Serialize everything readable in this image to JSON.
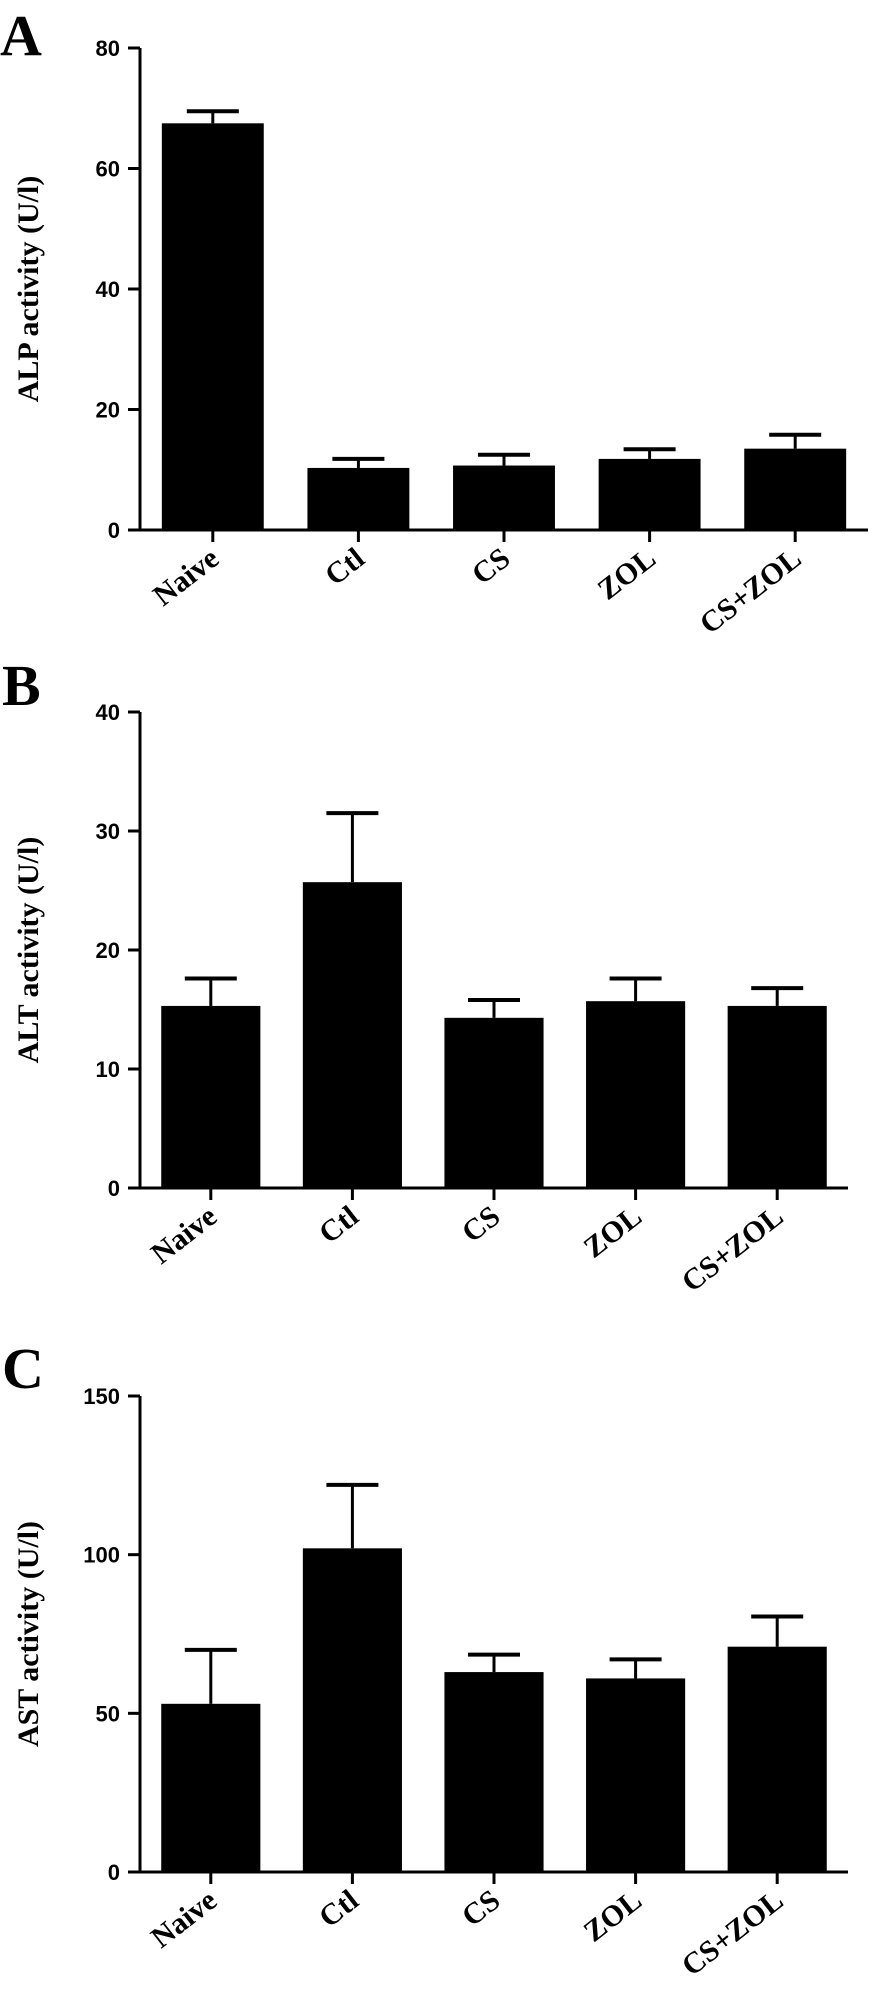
{
  "chart_data": [
    {
      "panel": "A",
      "type": "bar",
      "categories": [
        "Naive",
        "Ctl",
        "CS",
        "ZOL",
        "CS+ZOL"
      ],
      "values": [
        67.5,
        10.3,
        10.7,
        11.8,
        13.5
      ],
      "errors": [
        2.0,
        1.5,
        1.8,
        1.6,
        2.3
      ],
      "ylabel": "ALP activity (U/l)",
      "ylim": [
        0,
        80
      ],
      "yticks": [
        0,
        20,
        40,
        60,
        80
      ],
      "bar_color": "#000000"
    },
    {
      "panel": "B",
      "type": "bar",
      "categories": [
        "Naive",
        "Ctl",
        "CS",
        "ZOL",
        "CS+ZOL"
      ],
      "values": [
        15.3,
        25.7,
        14.3,
        15.7,
        15.3
      ],
      "errors": [
        2.3,
        5.8,
        1.5,
        1.9,
        1.5
      ],
      "ylabel": "ALT activity (U/l)",
      "ylim": [
        0,
        40
      ],
      "yticks": [
        0,
        10,
        20,
        30,
        40
      ],
      "bar_color": "#000000"
    },
    {
      "panel": "C",
      "type": "bar",
      "categories": [
        "Naive",
        "Ctl",
        "CS",
        "ZOL",
        "CS+ZOL"
      ],
      "values": [
        53,
        102,
        63,
        61,
        71
      ],
      "errors": [
        17,
        20,
        5.5,
        6,
        9.5
      ],
      "ylabel": "AST activity (U/l)",
      "ylim": [
        0,
        150
      ],
      "yticks": [
        0,
        50,
        100,
        150
      ],
      "bar_color": "#000000"
    }
  ]
}
